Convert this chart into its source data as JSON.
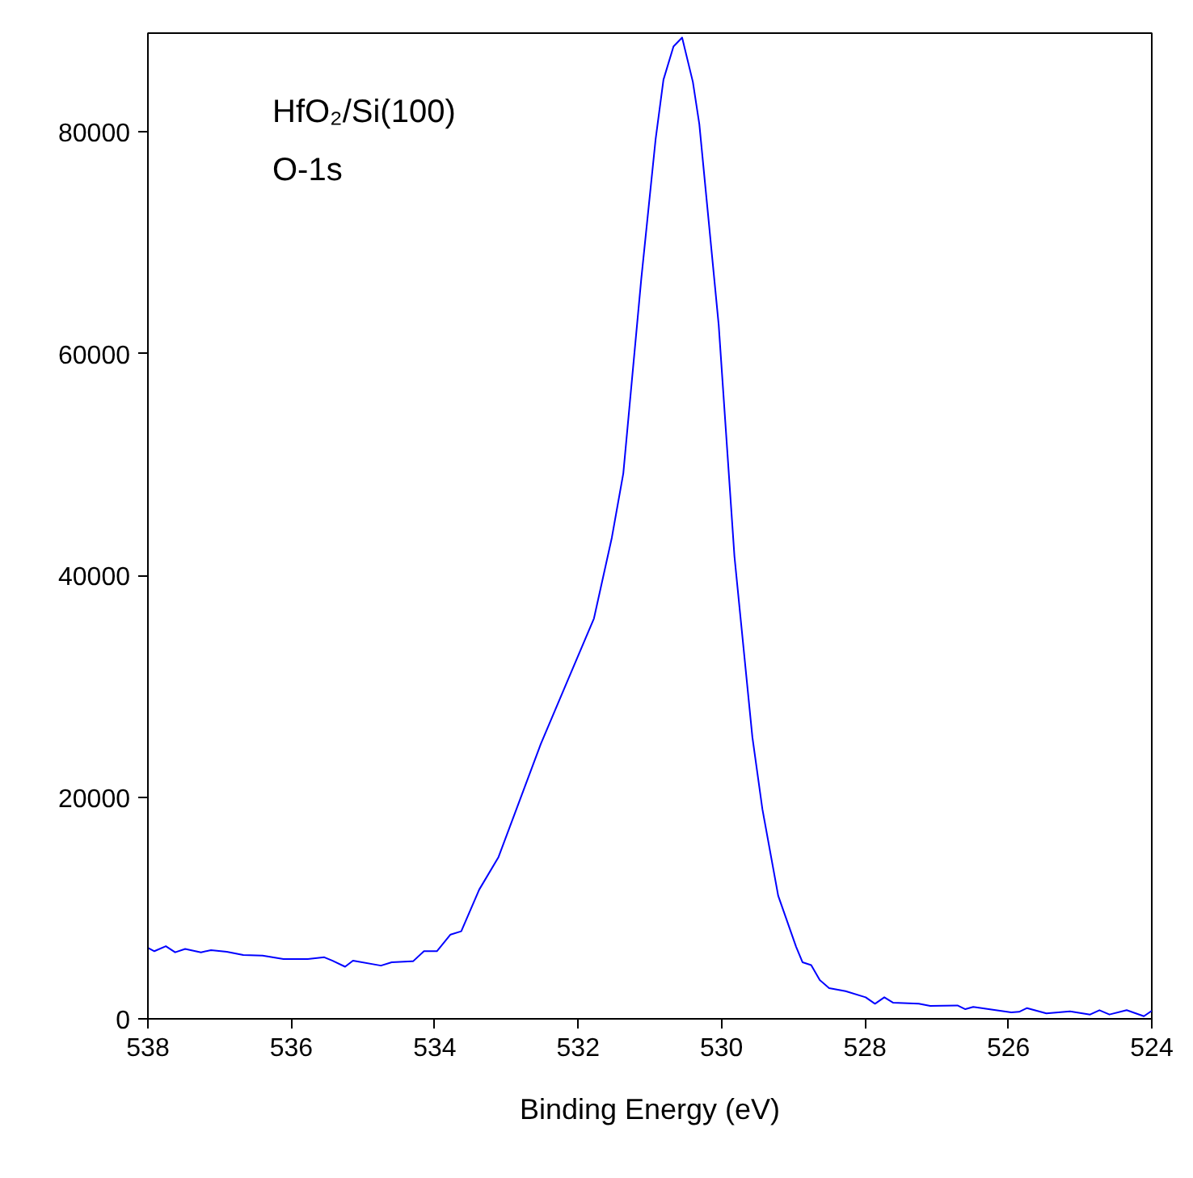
{
  "chart_data": {
    "type": "line",
    "xlabel": "Binding Energy (eV)",
    "annotations": [
      "HfO₂/Si(100)",
      "O-1s"
    ],
    "x": [
      538.0,
      537.91,
      537.75,
      537.62,
      537.48,
      537.26,
      537.12,
      536.9,
      536.67,
      536.4,
      536.11,
      535.77,
      535.54,
      535.43,
      535.25,
      535.14,
      534.75,
      534.6,
      534.3,
      534.15,
      533.97,
      533.78,
      533.63,
      533.38,
      533.11,
      532.52,
      532.16,
      531.78,
      531.53,
      531.37,
      531.12,
      530.92,
      530.81,
      530.67,
      530.55,
      530.4,
      530.31,
      530.04,
      529.82,
      529.57,
      529.43,
      529.21,
      528.96,
      528.87,
      528.75,
      528.63,
      528.5,
      528.27,
      527.99,
      527.86,
      527.73,
      527.61,
      527.25,
      527.09,
      526.71,
      526.6,
      526.49,
      525.96,
      525.85,
      525.74,
      525.47,
      525.14,
      524.86,
      524.73,
      524.59,
      524.35,
      524.11,
      524.0
    ],
    "series": [
      {
        "color": "#0000ff",
        "values": [
          6400,
          6100,
          6550,
          6000,
          6300,
          6000,
          6200,
          6050,
          5750,
          5700,
          5400,
          5400,
          5550,
          5250,
          4700,
          5250,
          4800,
          5100,
          5200,
          6100,
          6100,
          7600,
          7900,
          11650,
          14600,
          24800,
          30300,
          36100,
          43400,
          49200,
          66700,
          79300,
          84700,
          87700,
          88500,
          84500,
          80700,
          62600,
          41700,
          25400,
          18900,
          11100,
          6500,
          5100,
          4850,
          3500,
          2770,
          2500,
          1940,
          1360,
          1940,
          1460,
          1360,
          1170,
          1210,
          870,
          1070,
          580,
          630,
          970,
          490,
          680,
          390,
          780,
          390,
          780,
          240,
          730
        ]
      }
    ],
    "xlim": [
      538,
      524
    ],
    "ylim": [
      0,
      88900
    ],
    "xticks": [
      538,
      536,
      534,
      532,
      530,
      528,
      526,
      524
    ],
    "yticks": [
      0,
      20000,
      40000,
      60000,
      80000
    ],
    "marker": "none",
    "line_style": "solid"
  }
}
